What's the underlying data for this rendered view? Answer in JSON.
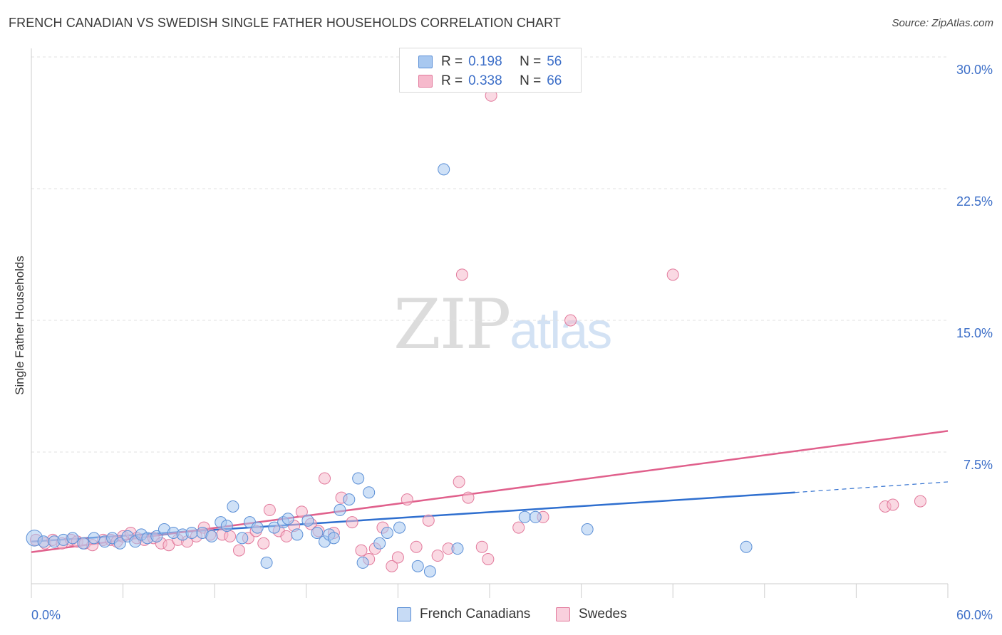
{
  "title": "FRENCH CANADIAN VS SWEDISH SINGLE FATHER HOUSEHOLDS CORRELATION CHART",
  "source": "Source: ZipAtlas.com",
  "watermark": {
    "part1": "ZIP",
    "part2": "atlas"
  },
  "legend": {
    "rows": [
      {
        "r_label": "R =",
        "r_value": "0.198",
        "n_label": "N =",
        "n_value": "56"
      },
      {
        "r_label": "R =",
        "r_value": "0.338",
        "n_label": "N =",
        "n_value": "66"
      }
    ]
  },
  "bottom_legend": [
    "French Canadians",
    "Swedes"
  ],
  "chart_data": {
    "type": "scatter",
    "title": "FRENCH CANADIAN VS SWEDISH SINGLE FATHER HOUSEHOLDS CORRELATION CHART",
    "xlabel": "",
    "ylabel": "Single Father Households",
    "xlim": [
      0,
      60
    ],
    "ylim": [
      0,
      30
    ],
    "x_tick_labels": [
      "0.0%",
      "60.0%"
    ],
    "y_ticks": [
      7.5,
      15.0,
      22.5,
      30.0
    ],
    "y_tick_labels": [
      "7.5%",
      "15.0%",
      "22.5%",
      "30.0%"
    ],
    "colors": {
      "french_fill": "#a8c8f0",
      "french_stroke": "#5b8fd6",
      "french_line": "#2f6fcf",
      "swede_fill": "#f6b9cc",
      "swede_stroke": "#e27a9c",
      "swede_line": "#e0608c",
      "axis_text": "#3d6fc8",
      "grid": "#e0e0e0"
    },
    "series": [
      {
        "name": "French Canadians",
        "R": 0.198,
        "N": 56,
        "trend": {
          "x0": 0,
          "y0": 2.4,
          "x1": 50,
          "y1": 5.2,
          "dash_to_x": 60,
          "dash_to_y": 5.8
        },
        "points": [
          [
            0.2,
            2.6,
            1.4
          ],
          [
            0.8,
            2.4,
            1
          ],
          [
            1.5,
            2.4,
            1
          ],
          [
            2.1,
            2.5,
            1
          ],
          [
            2.7,
            2.6,
            1
          ],
          [
            3.4,
            2.3,
            1
          ],
          [
            4.1,
            2.6,
            1
          ],
          [
            4.8,
            2.4,
            1
          ],
          [
            5.3,
            2.6,
            1
          ],
          [
            5.8,
            2.3,
            1
          ],
          [
            6.3,
            2.7,
            1
          ],
          [
            6.8,
            2.4,
            1
          ],
          [
            7.2,
            2.8,
            1
          ],
          [
            7.6,
            2.6,
            1
          ],
          [
            8.2,
            2.7,
            1
          ],
          [
            8.7,
            3.1,
            1
          ],
          [
            9.3,
            2.9,
            1
          ],
          [
            9.9,
            2.8,
            1
          ],
          [
            10.5,
            2.9,
            1
          ],
          [
            11.2,
            2.9,
            1
          ],
          [
            11.8,
            2.7,
            1
          ],
          [
            12.4,
            3.5,
            1
          ],
          [
            12.8,
            3.3,
            1
          ],
          [
            13.2,
            4.4,
            1
          ],
          [
            13.8,
            2.6,
            1
          ],
          [
            14.3,
            3.5,
            1
          ],
          [
            14.8,
            3.2,
            1
          ],
          [
            15.4,
            1.2,
            1
          ],
          [
            15.9,
            3.2,
            1
          ],
          [
            16.5,
            3.5,
            1
          ],
          [
            16.8,
            3.7,
            1
          ],
          [
            17.4,
            2.8,
            1
          ],
          [
            18.1,
            3.6,
            1
          ],
          [
            18.7,
            2.9,
            1
          ],
          [
            19.2,
            2.4,
            1
          ],
          [
            19.5,
            2.8,
            1
          ],
          [
            19.8,
            2.6,
            1
          ],
          [
            20.2,
            4.2,
            1
          ],
          [
            20.8,
            4.8,
            1
          ],
          [
            21.4,
            6.0,
            1
          ],
          [
            21.7,
            1.2,
            1
          ],
          [
            22.1,
            5.2,
            1
          ],
          [
            22.8,
            2.3,
            1
          ],
          [
            23.3,
            2.9,
            1
          ],
          [
            24.1,
            3.2,
            1
          ],
          [
            25.3,
            1.0,
            1
          ],
          [
            26.1,
            0.7,
            1
          ],
          [
            27.0,
            23.6,
            1
          ],
          [
            27.9,
            2.0,
            1
          ],
          [
            32.3,
            3.8,
            1
          ],
          [
            33.0,
            3.8,
            1
          ],
          [
            36.4,
            3.1,
            1
          ],
          [
            46.8,
            2.1,
            1
          ]
        ]
      },
      {
        "name": "Swedes",
        "R": 0.338,
        "N": 66,
        "trend": {
          "x0": 0,
          "y0": 1.8,
          "x1": 60,
          "y1": 8.7
        },
        "points": [
          [
            0.3,
            2.5,
            1
          ],
          [
            0.9,
            2.3,
            1
          ],
          [
            1.4,
            2.5,
            1
          ],
          [
            2.0,
            2.3,
            1
          ],
          [
            2.6,
            2.5,
            1
          ],
          [
            3.0,
            2.4,
            1
          ],
          [
            3.5,
            2.3,
            1
          ],
          [
            4.0,
            2.2,
            1
          ],
          [
            4.7,
            2.5,
            1
          ],
          [
            5.2,
            2.5,
            1
          ],
          [
            5.6,
            2.4,
            1
          ],
          [
            6.0,
            2.7,
            1
          ],
          [
            6.5,
            2.9,
            1
          ],
          [
            6.9,
            2.6,
            1
          ],
          [
            7.4,
            2.5,
            1
          ],
          [
            8.0,
            2.6,
            1
          ],
          [
            8.5,
            2.3,
            1
          ],
          [
            9.0,
            2.2,
            1
          ],
          [
            9.6,
            2.5,
            1
          ],
          [
            10.2,
            2.4,
            1
          ],
          [
            10.8,
            2.7,
            1
          ],
          [
            11.3,
            3.2,
            1
          ],
          [
            11.7,
            2.8,
            1
          ],
          [
            12.5,
            2.8,
            1
          ],
          [
            13.0,
            2.7,
            1
          ],
          [
            13.6,
            1.9,
            1
          ],
          [
            14.2,
            2.6,
            1
          ],
          [
            14.7,
            3.0,
            1
          ],
          [
            15.2,
            2.3,
            1
          ],
          [
            15.6,
            4.2,
            1
          ],
          [
            16.2,
            3.0,
            1
          ],
          [
            16.7,
            2.7,
            1
          ],
          [
            17.2,
            3.3,
            1
          ],
          [
            17.7,
            4.1,
            1
          ],
          [
            18.3,
            3.4,
            1
          ],
          [
            18.8,
            3.0,
            1
          ],
          [
            19.2,
            6.0,
            1
          ],
          [
            19.8,
            2.9,
            1
          ],
          [
            20.3,
            4.9,
            1
          ],
          [
            21.0,
            3.5,
            1
          ],
          [
            21.6,
            1.9,
            1
          ],
          [
            22.1,
            1.4,
            1
          ],
          [
            22.5,
            2.0,
            1
          ],
          [
            23.0,
            3.2,
            1
          ],
          [
            23.6,
            1.0,
            1
          ],
          [
            24.0,
            1.5,
            1
          ],
          [
            24.6,
            4.8,
            1
          ],
          [
            25.2,
            2.1,
            1
          ],
          [
            26.0,
            3.6,
            1
          ],
          [
            26.6,
            1.6,
            1
          ],
          [
            27.3,
            2.0,
            1
          ],
          [
            28.0,
            5.8,
            1
          ],
          [
            28.2,
            17.6,
            1
          ],
          [
            28.6,
            4.9,
            1
          ],
          [
            29.5,
            2.1,
            1
          ],
          [
            29.9,
            1.4,
            1
          ],
          [
            30.1,
            27.8,
            1
          ],
          [
            31.9,
            3.2,
            1
          ],
          [
            33.5,
            3.8,
            1
          ],
          [
            35.3,
            15.0,
            1
          ],
          [
            42.0,
            17.6,
            1
          ],
          [
            55.9,
            4.4,
            1
          ],
          [
            56.4,
            4.5,
            1
          ],
          [
            58.2,
            4.7,
            1
          ]
        ]
      }
    ]
  }
}
